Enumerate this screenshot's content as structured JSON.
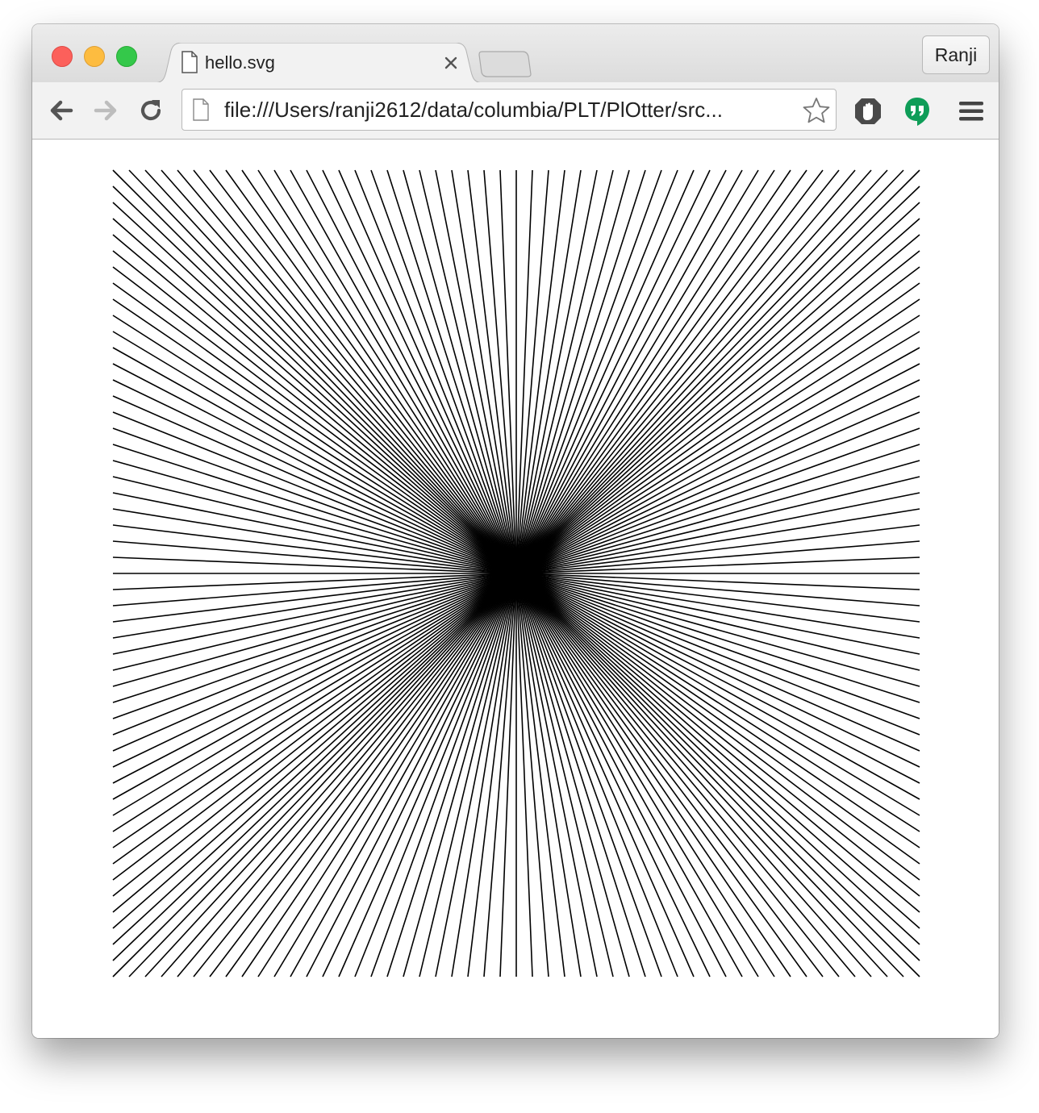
{
  "window": {
    "tab": {
      "title": "hello.svg",
      "icon": "file-icon"
    },
    "profile_label": "Ranji"
  },
  "toolbar": {
    "url": "file:///Users/ranji2612/data/columbia/PLT/PlOtter/src...",
    "icons": [
      "back-arrow-icon",
      "forward-arrow-icon",
      "reload-icon",
      "page-icon",
      "bookmark-star-icon",
      "hand-stop-extension-icon",
      "hangouts-extension-icon",
      "menu-icon"
    ]
  },
  "content": {
    "drawing": {
      "stroke_color": "#000000",
      "background": "#ffffff",
      "lines_per_side": 50,
      "description_hidden": ""
    }
  },
  "colors": {
    "close": "#fc605b",
    "minimize": "#fdbc40",
    "maximize": "#34c84a",
    "hangouts_green": "#0f9d58"
  }
}
